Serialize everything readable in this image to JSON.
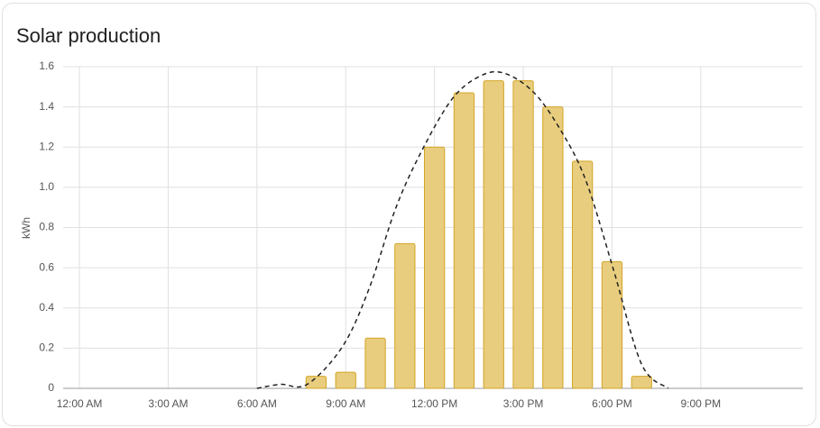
{
  "chart_data": {
    "type": "bar",
    "title": "Solar production",
    "ylabel": "kWh",
    "xlim": [
      -0.55,
      24.45
    ],
    "xticks": [
      {
        "value": 0,
        "label": "12:00 AM"
      },
      {
        "value": 3,
        "label": "3:00 AM"
      },
      {
        "value": 6,
        "label": "6:00 AM"
      },
      {
        "value": 9,
        "label": "9:00 AM"
      },
      {
        "value": 12,
        "label": "12:00 PM"
      },
      {
        "value": 15,
        "label": "3:00 PM"
      },
      {
        "value": 18,
        "label": "6:00 PM"
      },
      {
        "value": 21,
        "label": "9:00 PM"
      }
    ],
    "ylim": [
      0,
      1.6
    ],
    "yticks": [
      0,
      0.2,
      0.4,
      0.6,
      0.8,
      {
        "value": 1,
        "label": "1.0"
      },
      1.2,
      1.4,
      1.6
    ],
    "grid": true,
    "series": [
      {
        "type": "bar",
        "color": "#e8cd7e",
        "edge_color": "#d4a526",
        "x": [
          8,
          9,
          10,
          11,
          12,
          13,
          14,
          15,
          16,
          17,
          18,
          19
        ],
        "values": [
          0.06,
          0.08,
          0.25,
          0.72,
          1.2,
          1.47,
          1.53,
          1.53,
          1.4,
          1.13,
          0.63,
          0.06
        ]
      },
      {
        "type": "line",
        "color": "#222222",
        "dashed": true,
        "x": [
          6,
          6.8,
          7.7,
          8.9,
          9.8,
          10.7,
          11.6,
          12.6,
          13.5,
          14.3,
          15.3,
          16.2,
          17.1,
          18.05,
          19,
          19.9
        ],
        "values": [
          0,
          0.02,
          0.02,
          0.21,
          0.5,
          0.9,
          1.19,
          1.44,
          1.55,
          1.57,
          1.48,
          1.3,
          1.04,
          0.59,
          0.12,
          0
        ]
      }
    ]
  }
}
